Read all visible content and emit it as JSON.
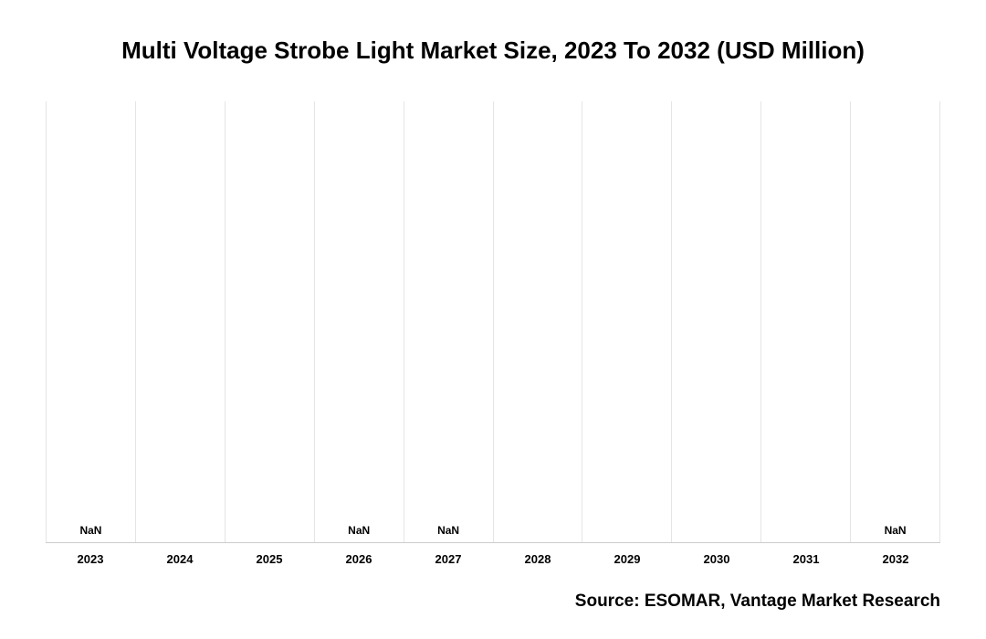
{
  "chart": {
    "type": "bar",
    "title": "Multi Voltage Strobe Light Market Size, 2023 To 2032 (USD Million)",
    "title_fontsize": 26,
    "background_color": "#ffffff",
    "grid_color": "#e5e5e5",
    "grid_width": 1,
    "axis_color": "#cccccc",
    "categories": [
      "2023",
      "2024",
      "2025",
      "2026",
      "2027",
      "2028",
      "2029",
      "2030",
      "2031",
      "2032"
    ],
    "values": [
      null,
      null,
      null,
      null,
      null,
      null,
      null,
      null,
      null,
      null
    ],
    "value_labels": [
      "NaN",
      "",
      "",
      "NaN",
      "NaN",
      "",
      "",
      "",
      "",
      "NaN"
    ],
    "x_label_fontsize": 13,
    "value_label_fontsize": 12,
    "source": "Source: ESOMAR, Vantage Market Research",
    "source_fontsize": 19
  }
}
